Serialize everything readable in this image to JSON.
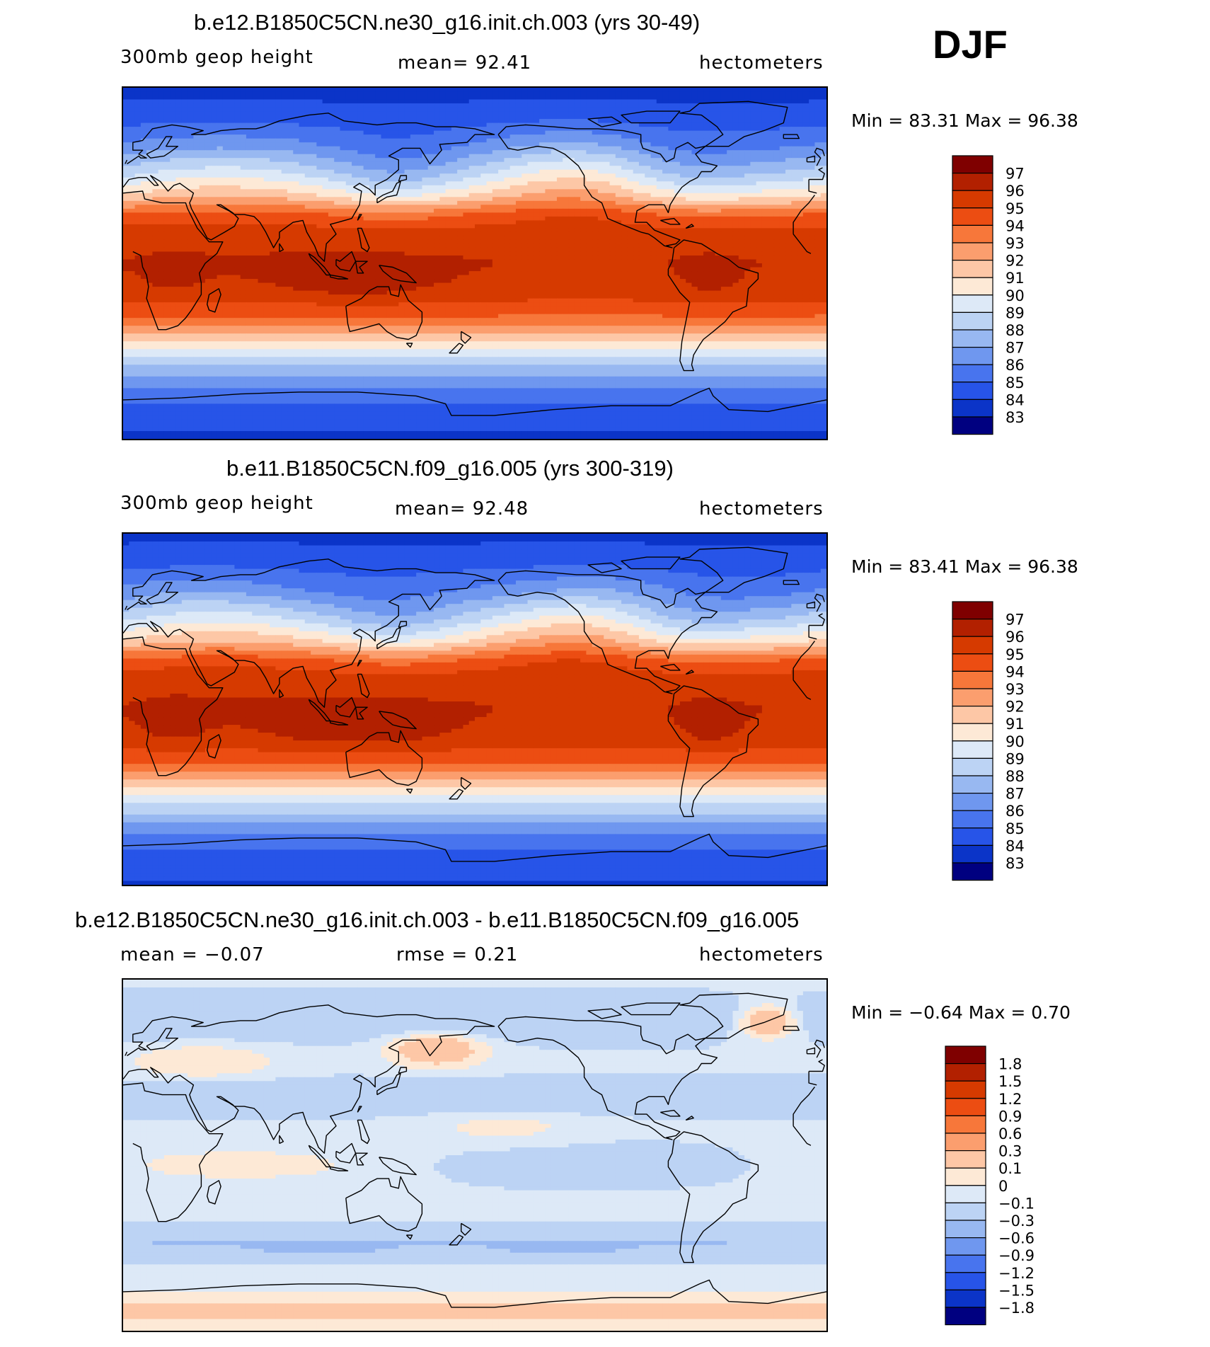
{
  "season": "DJF",
  "panels": [
    {
      "id": "panel1",
      "title": "b.e12.B1850C5CN.ne30_g16.init.ch.003 (yrs 30-49)",
      "left_label": "300mb  geop  height",
      "center_label": "mean=   92.41",
      "right_label": "hectometers",
      "stats": "Min  =    83.31  Max  =    96.38",
      "kind": "abs"
    },
    {
      "id": "panel2",
      "title": "b.e11.B1850C5CN.f09_g16.005 (yrs 300-319)",
      "left_label": "300mb  geop  height",
      "center_label": "mean=   92.48",
      "right_label": "hectometers",
      "stats": "Min  =    83.41  Max  =    96.38",
      "kind": "abs"
    },
    {
      "id": "panel3",
      "title": "b.e12.B1850C5CN.ne30_g16.init.ch.003 - b.e11.B1850C5CN.f09_g16.005",
      "left_label": "mean  =    −0.07",
      "center_label": "rmse  =     0.21",
      "right_label": "hectometers",
      "stats": "Min  =   −0.64  Max  =     0.70",
      "kind": "diff"
    }
  ],
  "colorbars": {
    "abs": {
      "labels": [
        "97",
        "96",
        "95",
        "94",
        "93",
        "92",
        "91",
        "90",
        "89",
        "88",
        "87",
        "86",
        "85",
        "84",
        "83"
      ],
      "colors": [
        "#7f0000",
        "#b22000",
        "#d63a00",
        "#ec4d12",
        "#f7773a",
        "#fb9e6e",
        "#fdc7a6",
        "#fde9d6",
        "#dde9f7",
        "#bcd3f4",
        "#98b8f1",
        "#6f97ef",
        "#4874ee",
        "#2754e8",
        "#0b34c8",
        "#000080"
      ]
    },
    "diff": {
      "labels": [
        "1.8",
        "1.5",
        "1.2",
        "0.9",
        "0.6",
        "0.3",
        "0.1",
        "0",
        "−0.1",
        "−0.3",
        "−0.6",
        "−0.9",
        "−1.2",
        "−1.5",
        "−1.8"
      ],
      "colors": [
        "#7f0000",
        "#b22000",
        "#d63a00",
        "#ec4d12",
        "#f7773a",
        "#fb9e6e",
        "#fdc7a6",
        "#fde9d6",
        "#dde9f7",
        "#bcd3f4",
        "#98b8f1",
        "#6f97ef",
        "#4874ee",
        "#2754e8",
        "#0b34c8",
        "#000080"
      ]
    }
  },
  "chart_data": [
    {
      "type": "heatmap",
      "title": "b.e12.B1850C5CN.ne30_g16.init.ch.003 (yrs 30-49)",
      "variable": "300mb geop height",
      "units": "hectometers",
      "season": "DJF",
      "mean": 92.41,
      "min": 83.31,
      "max": 96.38,
      "lon_range": [
        0,
        360
      ],
      "lat_range": [
        -90,
        90
      ],
      "contour_levels": [
        83,
        84,
        85,
        86,
        87,
        88,
        89,
        90,
        91,
        92,
        93,
        94,
        95,
        96,
        97
      ],
      "zonal_profile": [
        {
          "lat": 90,
          "value": 83.6
        },
        {
          "lat": 75,
          "value": 84.5
        },
        {
          "lat": 60,
          "value": 86.3
        },
        {
          "lat": 45,
          "value": 89.0
        },
        {
          "lat": 35,
          "value": 91.2
        },
        {
          "lat": 25,
          "value": 94.2
        },
        {
          "lat": 15,
          "value": 95.6
        },
        {
          "lat": 0,
          "value": 96.0
        },
        {
          "lat": -15,
          "value": 95.6
        },
        {
          "lat": -30,
          "value": 93.6
        },
        {
          "lat": -45,
          "value": 89.8
        },
        {
          "lat": -60,
          "value": 86.4
        },
        {
          "lat": -75,
          "value": 84.6
        },
        {
          "lat": -90,
          "value": 83.8
        }
      ]
    },
    {
      "type": "heatmap",
      "title": "b.e11.B1850C5CN.f09_g16.005 (yrs 300-319)",
      "variable": "300mb geop height",
      "units": "hectometers",
      "season": "DJF",
      "mean": 92.48,
      "min": 83.41,
      "max": 96.38,
      "lon_range": [
        0,
        360
      ],
      "lat_range": [
        -90,
        90
      ],
      "contour_levels": [
        83,
        84,
        85,
        86,
        87,
        88,
        89,
        90,
        91,
        92,
        93,
        94,
        95,
        96,
        97
      ],
      "zonal_profile": [
        {
          "lat": 90,
          "value": 83.7
        },
        {
          "lat": 75,
          "value": 84.6
        },
        {
          "lat": 60,
          "value": 86.4
        },
        {
          "lat": 45,
          "value": 89.1
        },
        {
          "lat": 35,
          "value": 91.3
        },
        {
          "lat": 25,
          "value": 94.3
        },
        {
          "lat": 15,
          "value": 95.7
        },
        {
          "lat": 0,
          "value": 96.0
        },
        {
          "lat": -15,
          "value": 95.7
        },
        {
          "lat": -30,
          "value": 93.7
        },
        {
          "lat": -45,
          "value": 89.9
        },
        {
          "lat": -60,
          "value": 86.5
        },
        {
          "lat": -75,
          "value": 84.7
        },
        {
          "lat": -90,
          "value": 83.9
        }
      ]
    },
    {
      "type": "heatmap",
      "title": "b.e12.B1850C5CN.ne30_g16.init.ch.003 - b.e11.B1850C5CN.f09_g16.005",
      "variable": "300mb geop height difference",
      "units": "hectometers",
      "season": "DJF",
      "mean": -0.07,
      "rmse": 0.21,
      "min": -0.64,
      "max": 0.7,
      "lon_range": [
        0,
        360
      ],
      "lat_range": [
        -90,
        90
      ],
      "contour_levels": [
        -1.8,
        -1.5,
        -1.2,
        -0.9,
        -0.6,
        -0.3,
        -0.1,
        0,
        0.1,
        0.3,
        0.6,
        0.9,
        1.2,
        1.5,
        1.8
      ],
      "zonal_profile": [
        {
          "lat": 90,
          "value": -0.15
        },
        {
          "lat": 70,
          "value": -0.1
        },
        {
          "lat": 55,
          "value": 0.05
        },
        {
          "lat": 35,
          "value": -0.1
        },
        {
          "lat": 15,
          "value": -0.05
        },
        {
          "lat": -5,
          "value": 0.05
        },
        {
          "lat": -25,
          "value": -0.1
        },
        {
          "lat": -45,
          "value": -0.2
        },
        {
          "lat": -60,
          "value": -0.1
        },
        {
          "lat": -75,
          "value": 0.1
        },
        {
          "lat": -90,
          "value": -0.05
        }
      ]
    }
  ]
}
